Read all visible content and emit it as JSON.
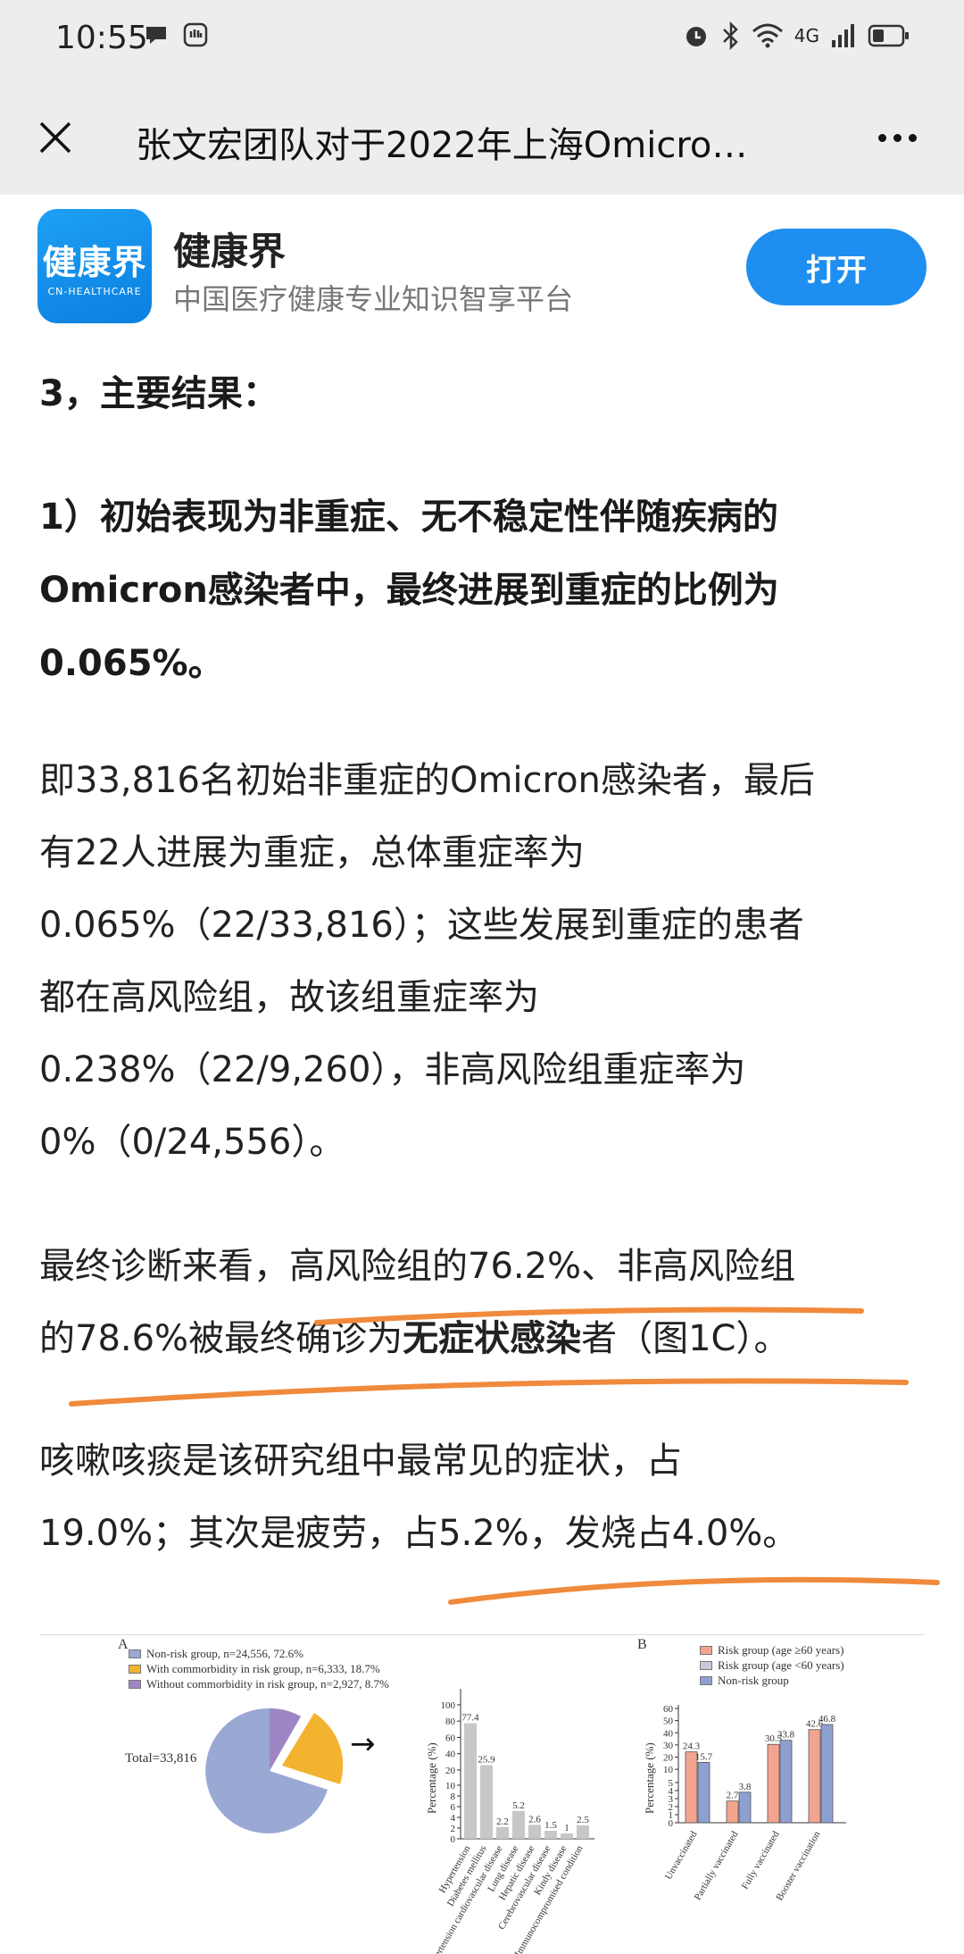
{
  "status": {
    "time": "10:55",
    "network": "4G"
  },
  "nav": {
    "title": "张文宏团队对于2022年上海Omicro…"
  },
  "banner": {
    "logo_cn": "健康界",
    "logo_en": "CN-HEALTHCARE",
    "app_name": "健康界",
    "app_desc": "中国医疗健康专业知识智享平台",
    "open_label": "打开",
    "accent": "#1e8ff0"
  },
  "article": {
    "section_heading": "3，主要结果：",
    "result_heading": "1）初始表现为非重症、无不稳定性伴随疾病的Omicron感染者中，最终进展到重症的比例为0.065%。",
    "p1_line1": "即33,816名初始非重症的Omicron感染者，最后",
    "p1_line2": "有22人进展为重症，总体重症率为",
    "p1_line3": "0.065%（22/33,816）；这些发展到重症的患者",
    "p1_line4": "都在高风险组，故该组重症率为",
    "p1_line5": "0.238%（22/9,260），非高风险组重症率为",
    "p1_line6": "0%（0/24,556）。",
    "p2_line1": "最终诊断来看，高风险组的76.2%、非高风险组",
    "p2_line2_a": "的78.6%被最终确诊为",
    "p2_line2_bold": "无症状感染",
    "p2_line2_b": "者（图1C）。",
    "p3_line1": "咳嗽咳痰是该研究组中最常见的症状，占",
    "p3_line2": "19.0%；其次是疲劳，占5.2%，发烧占4.0%。",
    "highlight_color": "#f08a3c"
  },
  "figure": {
    "panel_a_label": "A",
    "panel_b_label": "B",
    "legend_a": [
      {
        "label": "Non-risk group, n=24,556, 72.6%",
        "color": "#9aa8d4"
      },
      {
        "label": "With commorbidity in risk group, n=6,333, 18.7%",
        "color": "#f4b32e"
      },
      {
        "label": "Without commorbidity in risk group, n=2,927, 8.7%",
        "color": "#9e86c4"
      }
    ],
    "total_label": "Total=33,816",
    "legend_b": [
      {
        "label": "Risk group (age ≥60 years)",
        "color": "#f3a48f"
      },
      {
        "label": "Risk group (age <60 years)",
        "color": "#c9c9dc"
      },
      {
        "label": "Non-risk group",
        "color": "#8ea0cf"
      }
    ]
  },
  "chart_data": [
    {
      "type": "pie",
      "categories": [
        "Non-risk group",
        "With commorbidity in risk group",
        "Without commorbidity in risk group"
      ],
      "values": [
        72.6,
        18.7,
        8.7
      ]
    },
    {
      "type": "bar",
      "ylabel": "Percentage (%)",
      "categories": [
        "Hypertension",
        "Diabetes mellitus",
        "Hypertension cardiovascular disease",
        "Lung disease",
        "Hepatic disease",
        "Cerebrovascular disease",
        "Kindy disease",
        "Immunocompromised condition"
      ],
      "values": [
        77.4,
        25.9,
        2.2,
        5.2,
        2.6,
        1.5,
        1.0,
        2.5
      ],
      "yticks": [
        "0",
        "2",
        "4",
        "6",
        "8",
        "10",
        "20",
        "40",
        "60",
        "80",
        "100"
      ]
    },
    {
      "type": "bar",
      "ylabel": "Percentage (%)",
      "categories": [
        "Unvaccinated",
        "Partially vaccinated",
        "Fully vaccinated",
        "Booster vaccination"
      ],
      "series": [
        {
          "name": "Risk group (age ≥60 years)",
          "values": [
            24.3,
            2.7,
            30.5,
            42.6
          ]
        },
        {
          "name": "Non-risk group",
          "values": [
            15.7,
            3.8,
            33.8,
            46.8
          ]
        }
      ],
      "yticks": [
        "0",
        "1",
        "2",
        "3",
        "4",
        "5",
        "10",
        "20",
        "30",
        "40",
        "50",
        "60"
      ]
    }
  ]
}
